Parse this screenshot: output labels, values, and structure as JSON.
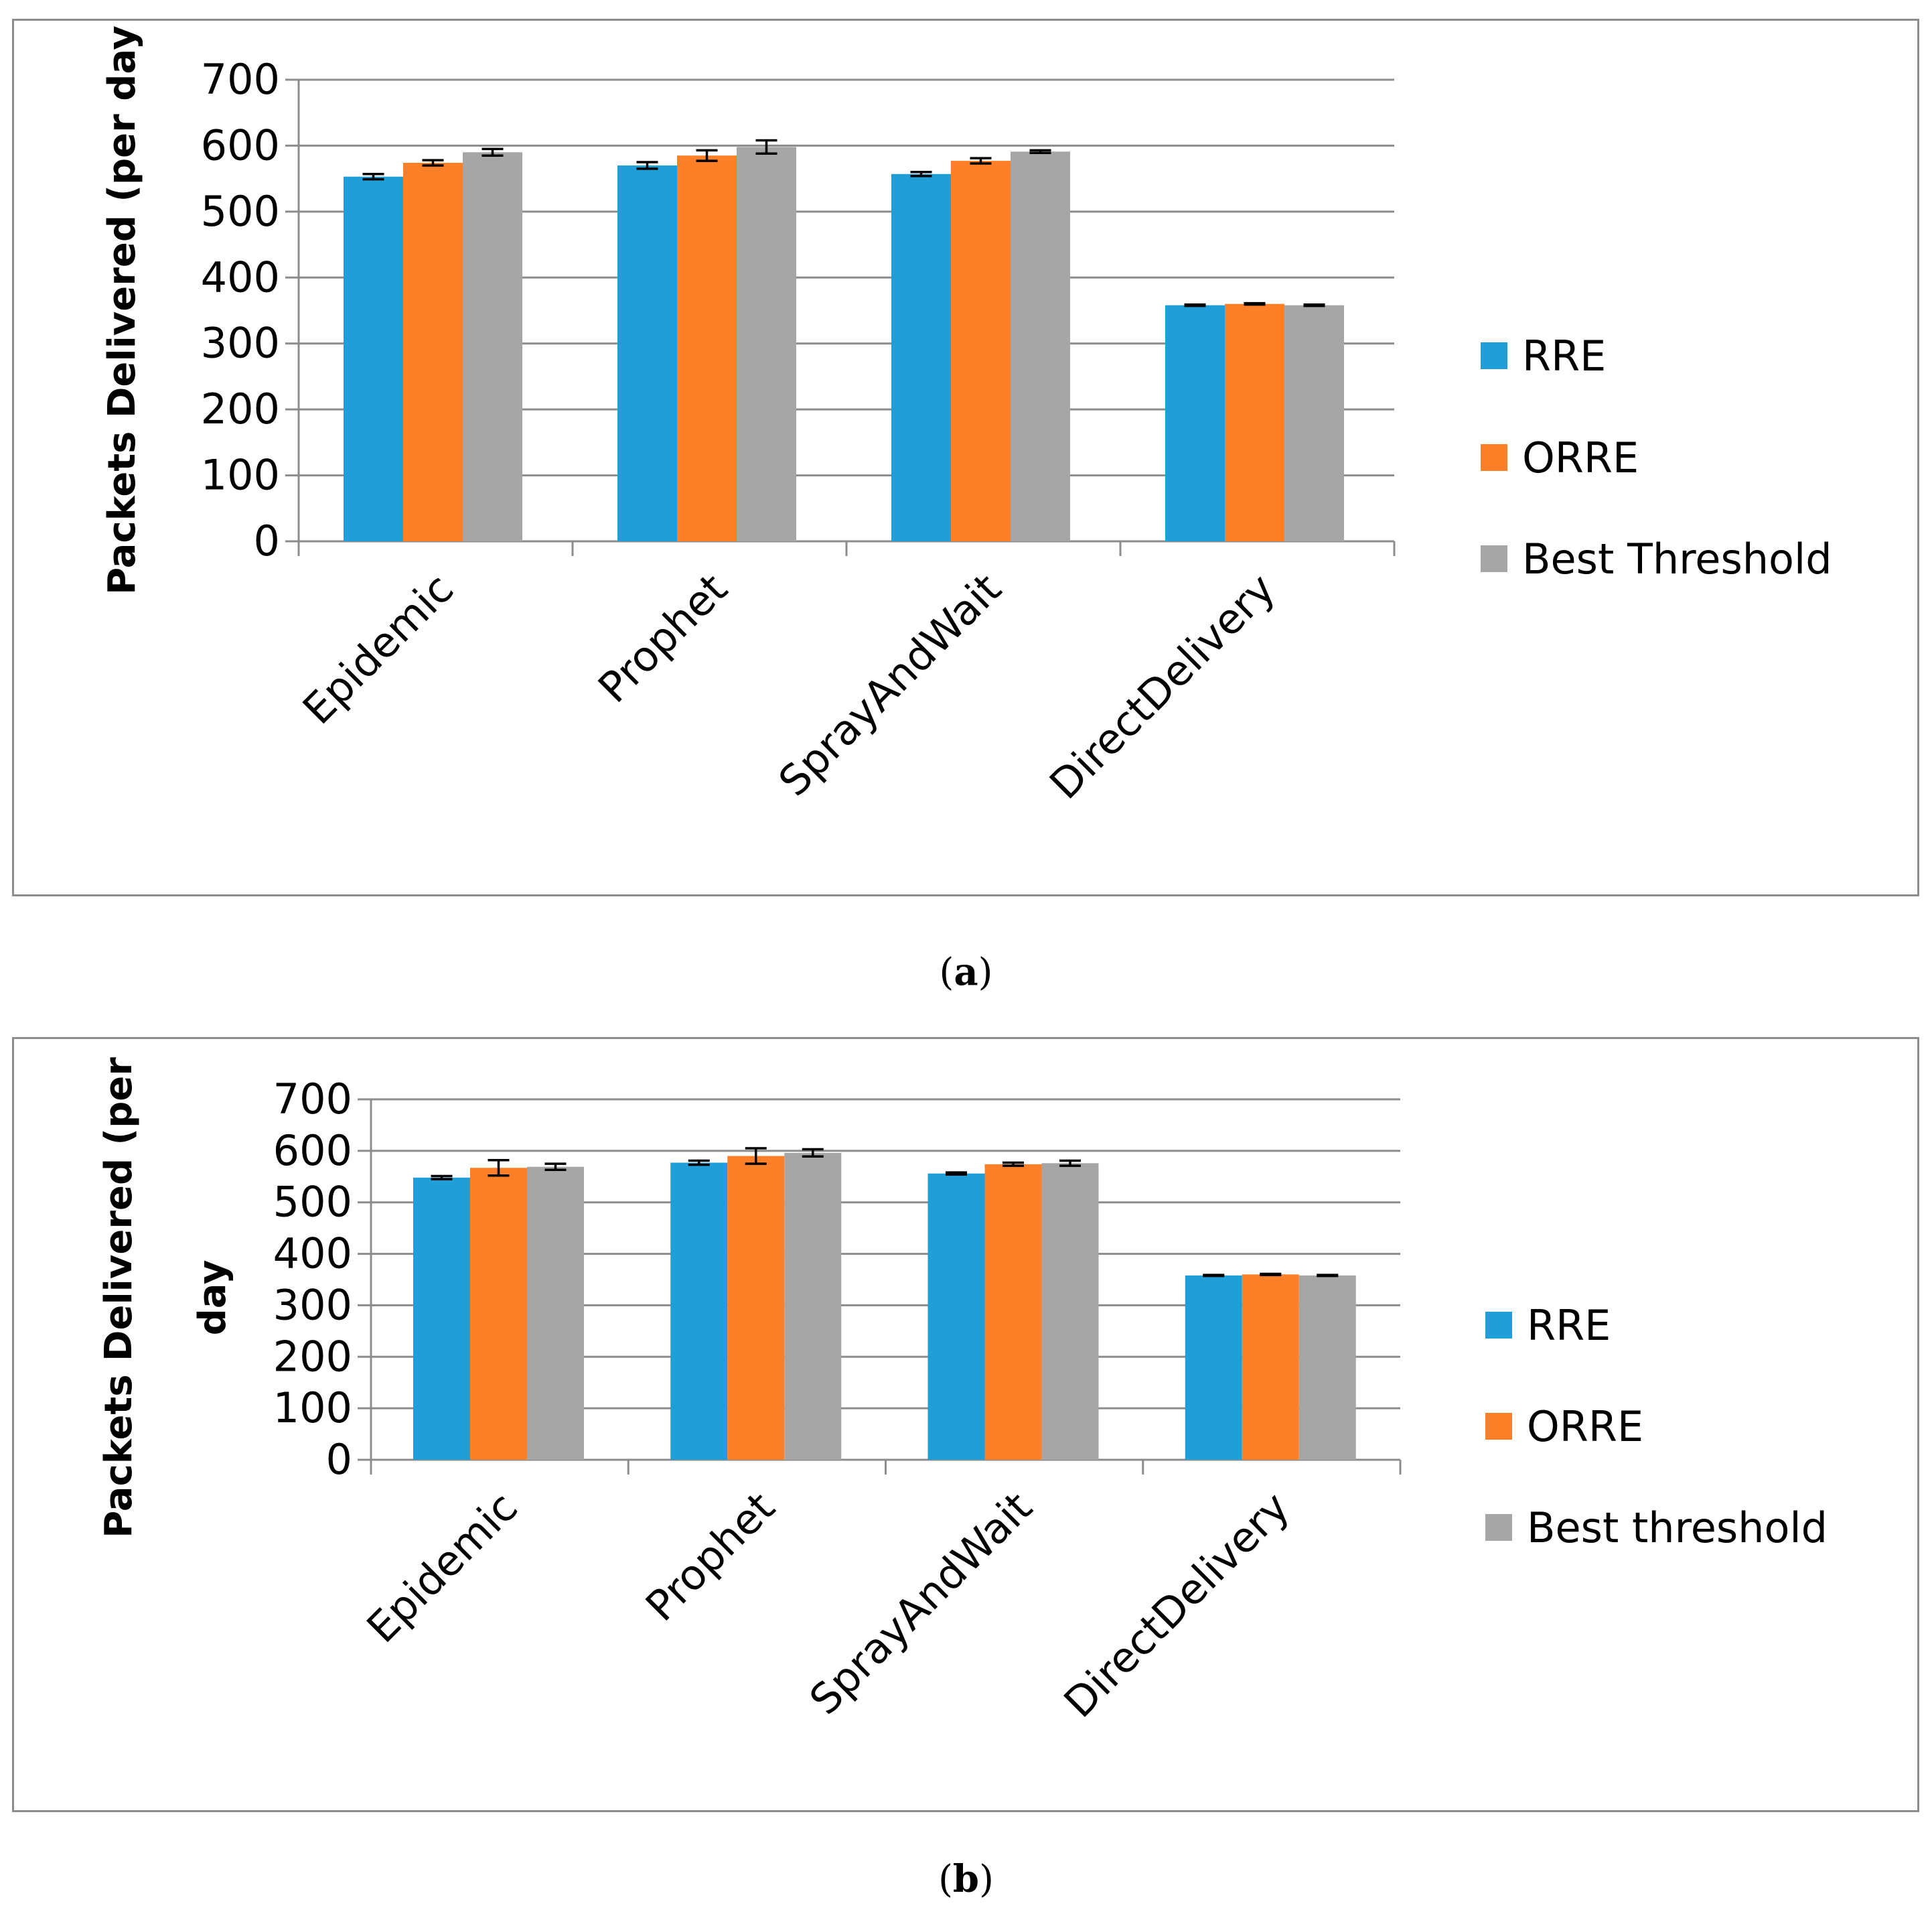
{
  "chart_data": [
    {
      "type": "bar",
      "panel": "a",
      "caption": "a",
      "categories": [
        "Epidemic",
        "Prophet",
        "SprayAndWait",
        "DirectDelivery"
      ],
      "series": [
        {
          "name": "RRE",
          "color": "#1f9ed7",
          "values": [
            553,
            570,
            557,
            358
          ],
          "errors": [
            4,
            5,
            3,
            1
          ]
        },
        {
          "name": "ORRE",
          "color": "#fd8028",
          "values": [
            574,
            585,
            577,
            360
          ],
          "errors": [
            4,
            8,
            4,
            1
          ]
        },
        {
          "name": "Best Threshold",
          "color": "#a6a6a6",
          "values": [
            590,
            598,
            591,
            358
          ],
          "errors": [
            5,
            10,
            2,
            1
          ]
        }
      ],
      "ylabel": "Packets Delivered (per day",
      "ylim": [
        0,
        700
      ],
      "yticks": [
        "0",
        "100",
        "200",
        "300",
        "400",
        "500",
        "600",
        "700"
      ],
      "grid": true,
      "legend": "right"
    },
    {
      "type": "bar",
      "panel": "b",
      "caption": "b",
      "categories": [
        "Epidemic",
        "Prophet",
        "SprayAndWait",
        "DirectDelivery"
      ],
      "series": [
        {
          "name": "RRE",
          "color": "#1f9ed7",
          "values": [
            548,
            577,
            556,
            358
          ],
          "errors": [
            3,
            4,
            2,
            1
          ]
        },
        {
          "name": "ORRE",
          "color": "#fd8028",
          "values": [
            567,
            590,
            574,
            360
          ],
          "errors": [
            15,
            15,
            3,
            1
          ]
        },
        {
          "name": "Best threshold",
          "color": "#a6a6a6",
          "values": [
            569,
            596,
            576,
            358
          ],
          "errors": [
            6,
            7,
            5,
            1
          ]
        }
      ],
      "ylabel": [
        "Packets Delivered (per",
        "day"
      ],
      "ylim": [
        0,
        700
      ],
      "yticks": [
        "0",
        "100",
        "200",
        "300",
        "400",
        "500",
        "600",
        "700"
      ],
      "grid": true,
      "legend": "right"
    }
  ]
}
